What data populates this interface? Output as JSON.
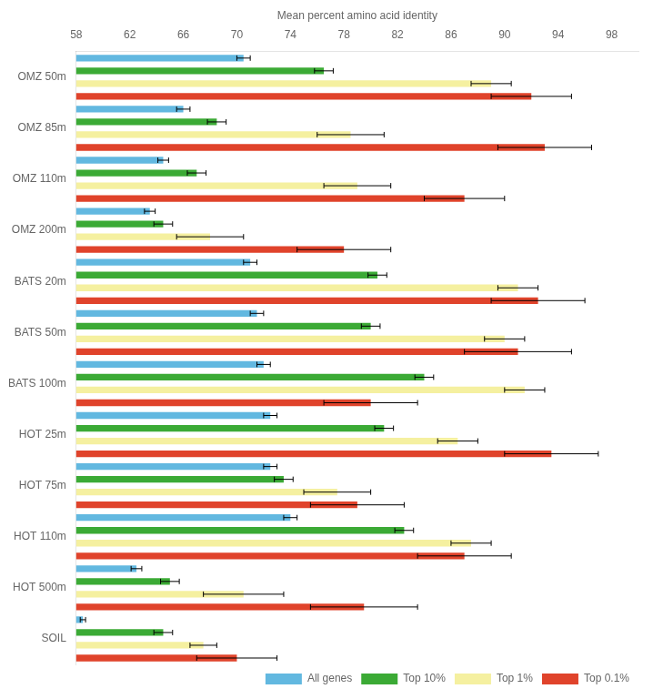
{
  "chart_data": {
    "type": "bar",
    "orientation": "horizontal",
    "categories": [
      "OMZ 50m",
      "OMZ 85m",
      "OMZ 110m",
      "OMZ 200m",
      "BATS 20m",
      "BATS 50m",
      "BATS 100m",
      "HOT 25m",
      "HOT 75m",
      "HOT 110m",
      "HOT 500m",
      "SOIL"
    ],
    "series": [
      {
        "name": "All genes",
        "color": "#62B8E0",
        "values": [
          70.5,
          66.0,
          64.5,
          63.5,
          71.0,
          71.5,
          72.0,
          72.5,
          72.5,
          74.0,
          62.5,
          58.5
        ],
        "errors": [
          0.5,
          0.5,
          0.4,
          0.4,
          0.5,
          0.5,
          0.5,
          0.5,
          0.5,
          0.5,
          0.4,
          0.2
        ]
      },
      {
        "name": "Top 10%",
        "color": "#3BAA35",
        "values": [
          76.5,
          68.5,
          67.0,
          64.5,
          80.5,
          80.0,
          84.0,
          81.0,
          73.5,
          82.5,
          65.0,
          64.5
        ],
        "errors": [
          0.7,
          0.7,
          0.7,
          0.7,
          0.7,
          0.7,
          0.7,
          0.7,
          0.7,
          0.7,
          0.7,
          0.7
        ]
      },
      {
        "name": "Top 1%",
        "color": "#F5F0A0",
        "values": [
          89.0,
          78.5,
          79.0,
          68.0,
          91.0,
          90.0,
          91.5,
          86.5,
          77.5,
          87.5,
          70.5,
          67.5
        ],
        "errors": [
          1.5,
          2.5,
          2.5,
          2.5,
          1.5,
          1.5,
          1.5,
          1.5,
          2.5,
          1.5,
          3.0,
          1.0
        ]
      },
      {
        "name": "Top 0.1%",
        "color": "#E0432B",
        "values": [
          92.0,
          93.0,
          87.0,
          78.0,
          92.5,
          91.0,
          80.0,
          93.5,
          79.0,
          87.0,
          79.5,
          70.0
        ],
        "errors": [
          3.0,
          3.5,
          3.0,
          3.5,
          3.5,
          4.0,
          3.5,
          3.5,
          3.5,
          3.5,
          4.0,
          3.0
        ]
      }
    ],
    "xlabel": "Mean percent amino acid identity",
    "xlim": [
      58,
      100
    ],
    "xticks": [
      58,
      62,
      66,
      70,
      74,
      78,
      82,
      86,
      90,
      94,
      98
    ],
    "grid": false,
    "legend": "lower right"
  }
}
